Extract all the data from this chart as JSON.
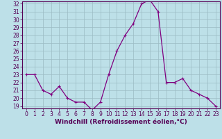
{
  "x": [
    0,
    1,
    2,
    3,
    4,
    5,
    6,
    7,
    8,
    9,
    10,
    11,
    12,
    13,
    14,
    15,
    16,
    17,
    18,
    19,
    20,
    21,
    22,
    23
  ],
  "y": [
    23,
    23,
    21,
    20.5,
    21.5,
    20,
    19.5,
    19.5,
    18.5,
    19.5,
    23,
    26,
    28,
    29.5,
    32,
    32.5,
    31,
    22,
    22,
    22.5,
    21,
    20.5,
    20,
    19
  ],
  "line_color": "#800080",
  "marker": "+",
  "marker_color": "#800080",
  "bg_color": "#bde0e8",
  "grid_color": "#9bbbc4",
  "xlabel": "Windchill (Refroidissement éolien,°C)",
  "xlabel_fontsize": 6.5,
  "tick_fontsize": 5.5,
  "ylim": [
    19,
    32
  ],
  "xlim": [
    -0.5,
    23.5
  ],
  "yticks": [
    19,
    20,
    21,
    22,
    23,
    24,
    25,
    26,
    27,
    28,
    29,
    30,
    31,
    32
  ],
  "xticks": [
    0,
    1,
    2,
    3,
    4,
    5,
    6,
    7,
    8,
    9,
    10,
    11,
    12,
    13,
    14,
    15,
    16,
    17,
    18,
    19,
    20,
    21,
    22,
    23
  ],
  "label_color": "#550055",
  "spine_color": "#550055",
  "linewidth": 0.9,
  "markersize": 3.5,
  "markeredgewidth": 0.8
}
